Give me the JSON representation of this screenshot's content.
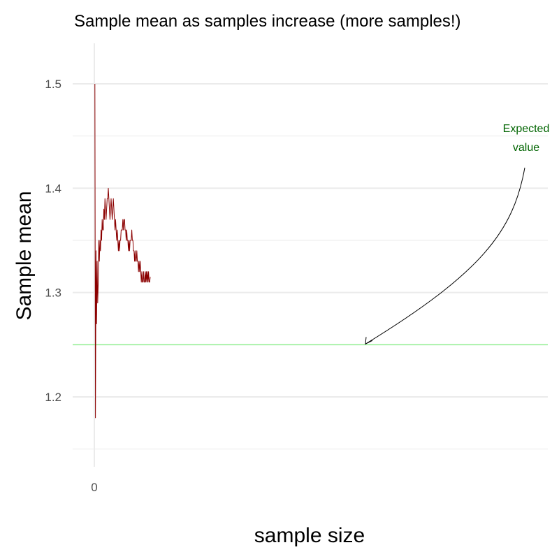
{
  "chart_data": {
    "type": "line",
    "title": "Sample mean as samples increase (more samples!)",
    "xlabel": "sample size",
    "ylabel": "Sample mean",
    "x_ticks": [
      "0"
    ],
    "y_ticks": [
      {
        "value": 1.2,
        "label": "1.2"
      },
      {
        "value": 1.3,
        "label": "1.3"
      },
      {
        "value": 1.4,
        "label": "1.4"
      },
      {
        "value": 1.5,
        "label": "1.5"
      }
    ],
    "ylim": [
      1.14,
      1.54
    ],
    "xlim": [
      -8,
      250
    ],
    "grid": true,
    "reference_line": {
      "y": 1.25,
      "color": "#90ee90"
    },
    "annotation": {
      "lines": [
        "Expected",
        "value"
      ],
      "color": "#006400",
      "target": [
        200,
        1.25
      ]
    },
    "series": [
      {
        "color": "#8b0000",
        "x": [
          1,
          2,
          3,
          4,
          5,
          6,
          7,
          8,
          9,
          10,
          11,
          12,
          13,
          14,
          15,
          16,
          17,
          18,
          19,
          20,
          21,
          22,
          23,
          24,
          25,
          26,
          27,
          28,
          29,
          30,
          31,
          32,
          33,
          34,
          35,
          36,
          37,
          38,
          39,
          40,
          41,
          42,
          43,
          44,
          45,
          46,
          47,
          48,
          49,
          50,
          51,
          52,
          53,
          54,
          55,
          56,
          57,
          58,
          59,
          60,
          61,
          62,
          63,
          64,
          65,
          66,
          67,
          68,
          69,
          70,
          71,
          72,
          73,
          74,
          75,
          76,
          77,
          78,
          79,
          80,
          81,
          82,
          83,
          84,
          85,
          86,
          87,
          88,
          89,
          90,
          91,
          92,
          93,
          94,
          95,
          96,
          97,
          98,
          99,
          100
        ],
        "values": [
          1.5,
          1.18,
          1.34,
          1.27,
          1.33,
          1.29,
          1.31,
          1.35,
          1.33,
          1.35,
          1.34,
          1.36,
          1.35,
          1.37,
          1.36,
          1.36,
          1.38,
          1.37,
          1.39,
          1.38,
          1.37,
          1.38,
          1.39,
          1.39,
          1.4,
          1.39,
          1.38,
          1.37,
          1.38,
          1.39,
          1.38,
          1.37,
          1.38,
          1.39,
          1.38,
          1.37,
          1.36,
          1.37,
          1.36,
          1.35,
          1.36,
          1.35,
          1.34,
          1.35,
          1.34,
          1.35,
          1.35,
          1.36,
          1.36,
          1.36,
          1.37,
          1.36,
          1.37,
          1.37,
          1.36,
          1.36,
          1.35,
          1.36,
          1.35,
          1.35,
          1.34,
          1.35,
          1.34,
          1.35,
          1.35,
          1.35,
          1.36,
          1.35,
          1.35,
          1.34,
          1.34,
          1.33,
          1.34,
          1.33,
          1.33,
          1.34,
          1.33,
          1.33,
          1.32,
          1.33,
          1.32,
          1.33,
          1.32,
          1.31,
          1.32,
          1.31,
          1.31,
          1.32,
          1.31,
          1.31,
          1.32,
          1.31,
          1.32,
          1.31,
          1.32,
          1.31,
          1.32,
          1.31,
          1.31,
          1.315
        ]
      }
    ]
  }
}
